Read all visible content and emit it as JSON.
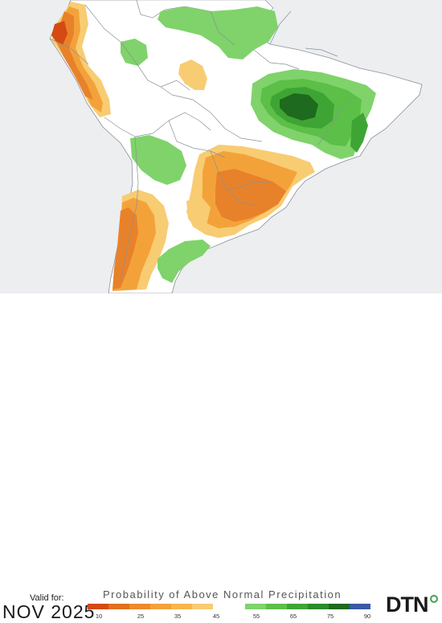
{
  "map": {
    "title": "Probability of Above Normal Precipitation",
    "region_name": "South America"
  },
  "footer": {
    "valid_label": "Valid for:",
    "valid_date": "NOV 2025",
    "brand": "DTN"
  },
  "legend": {
    "ticks": [
      "10",
      "25",
      "35",
      "45",
      "55",
      "65",
      "75",
      "90"
    ],
    "colors": [
      "#d44a12",
      "#e0701e",
      "#ed8a2a",
      "#f3a23a",
      "#f6b64c",
      "#f8cc72",
      "#ffffff",
      "#7fd36a",
      "#5cbf48",
      "#3ea535",
      "#2b8a2b",
      "#1e6a1e",
      "#3a5aa6"
    ]
  },
  "colors": {
    "land": "#ffffff",
    "ocean": "#eceef0",
    "border": "#9aa0a8",
    "orange_light": "#f8cc72",
    "orange_mid": "#f3a23a",
    "orange_dark": "#e8822a",
    "red_orange": "#d44a12",
    "green_light": "#7fd36a",
    "green_mid": "#5cbf48",
    "green_dark": "#2b8a2b"
  }
}
